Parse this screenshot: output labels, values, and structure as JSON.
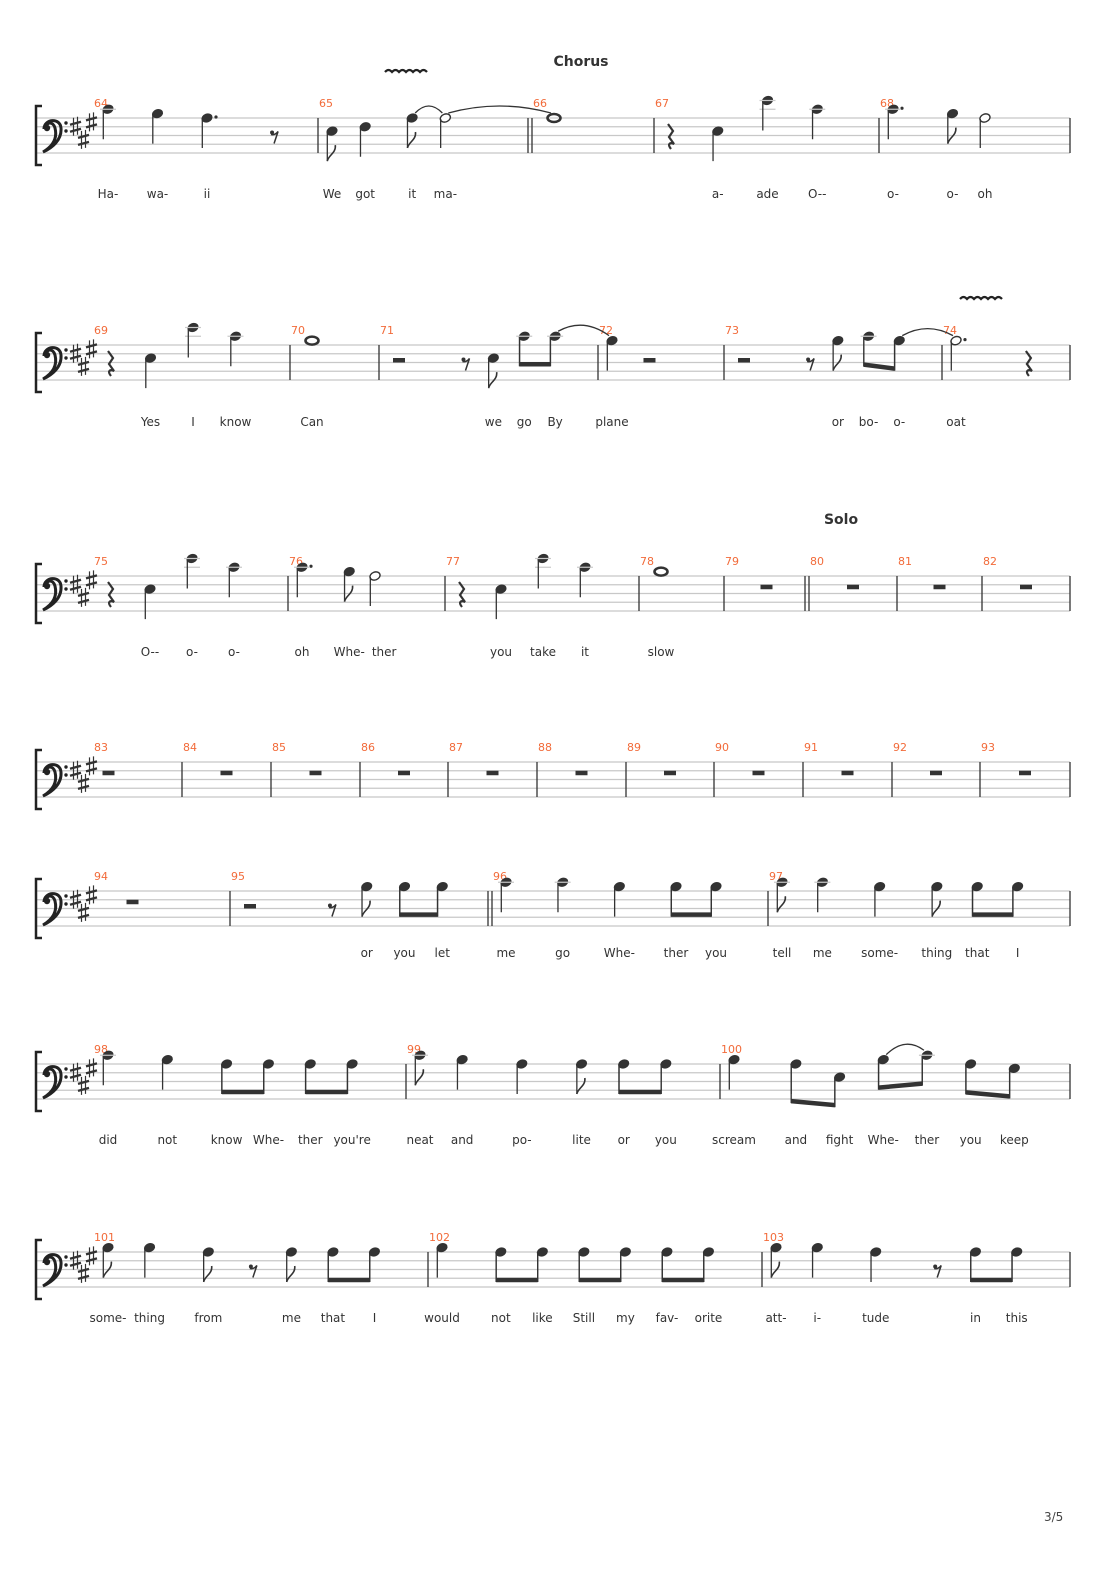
{
  "page_number": "3/5",
  "colors": {
    "measure_number": "#f26b3a",
    "ink": "#333333",
    "staff_line": "#c8c8c8",
    "lyric": "#333333"
  },
  "clef": "bass",
  "key_signature": {
    "sharps": [
      "F#",
      "C#",
      "G#"
    ]
  },
  "systems": [
    {
      "measures": [
        {
          "number": "64",
          "notes": [
            {
              "p": "C4",
              "d": 1,
              "l": "Ha-"
            },
            {
              "p": "B3",
              "d": 1,
              "l": "wa-"
            },
            {
              "p": "A3",
              "d": 1.5,
              "l": "ii"
            },
            {
              "r": true,
              "d": 0.5
            }
          ]
        },
        {
          "number": "65",
          "ornament": "wavy-line",
          "notes": [
            {
              "p": "E3",
              "d": 0.5,
              "l": "We"
            },
            {
              "p": "F3",
              "d": 1,
              "l": "got"
            },
            {
              "p": "A3",
              "d": 0.5,
              "l": "it",
              "t": true
            },
            {
              "p": "A3",
              "d": 2,
              "l": "ma-",
              "t": true
            }
          ]
        },
        {
          "number": "66",
          "double_bar_before": true,
          "section": "Chorus",
          "notes": [
            {
              "p": "A3",
              "d": 4
            }
          ]
        },
        {
          "number": "67",
          "notes": [
            {
              "r": true,
              "d": 1
            },
            {
              "p": "E3",
              "d": 1,
              "l": "a-"
            },
            {
              "p": "E4",
              "d": 1,
              "l": "ade"
            },
            {
              "p": "C4",
              "d": 1,
              "l": "O--"
            }
          ]
        },
        {
          "number": "68",
          "notes": [
            {
              "p": "C4",
              "d": 1.5,
              "l": "o-"
            },
            {
              "p": "B3",
              "d": 0.5,
              "l": "o-"
            },
            {
              "p": "A3",
              "d": 2,
              "l": "oh"
            }
          ]
        }
      ]
    },
    {
      "measures": [
        {
          "number": "69",
          "notes": [
            {
              "r": true,
              "d": 1
            },
            {
              "p": "E3",
              "d": 1,
              "l": "Yes"
            },
            {
              "p": "E4",
              "d": 1,
              "l": "I"
            },
            {
              "p": "C4",
              "d": 1,
              "l": "know"
            }
          ]
        },
        {
          "number": "70",
          "notes": [
            {
              "p": "B3",
              "d": 4,
              "l": "Can"
            }
          ]
        },
        {
          "number": "71",
          "notes": [
            {
              "r": true,
              "d": 2
            },
            {
              "r": true,
              "d": 0.5
            },
            {
              "p": "E3",
              "d": 0.5,
              "l": "we"
            },
            {
              "p": "C4",
              "d": 0.5,
              "l": "go"
            },
            {
              "p": "C4",
              "d": 0.5,
              "l": "By",
              "t": true
            }
          ]
        },
        {
          "number": "72",
          "notes": [
            {
              "p": "B3",
              "d": 1,
              "l": "plane"
            },
            {
              "r": true,
              "d": 3
            }
          ]
        },
        {
          "number": "73",
          "notes": [
            {
              "r": true,
              "d": 2
            },
            {
              "r": true,
              "d": 0.5
            },
            {
              "p": "B3",
              "d": 0.5,
              "l": "or"
            },
            {
              "p": "C4",
              "d": 0.5,
              "l": "bo-"
            },
            {
              "p": "B3",
              "d": 0.5,
              "l": "o-",
              "t": true
            }
          ]
        },
        {
          "number": "74",
          "ornament": "wavy-line",
          "notes": [
            {
              "p": "B3",
              "d": 3,
              "l": "oat"
            },
            {
              "r": true,
              "d": 1
            }
          ]
        }
      ]
    },
    {
      "measures": [
        {
          "number": "75",
          "notes": [
            {
              "r": true,
              "d": 1
            },
            {
              "p": "E3",
              "d": 1,
              "l": "O--"
            },
            {
              "p": "E4",
              "d": 1,
              "l": "o-"
            },
            {
              "p": "C4",
              "d": 1,
              "l": "o-"
            }
          ]
        },
        {
          "number": "76",
          "notes": [
            {
              "p": "C4",
              "d": 1.5,
              "l": "oh"
            },
            {
              "p": "B3",
              "d": 0.5,
              "l": "Whe-"
            },
            {
              "p": "A3",
              "d": 2,
              "l": "ther"
            }
          ]
        },
        {
          "number": "77",
          "notes": [
            {
              "r": true,
              "d": 1
            },
            {
              "p": "E3",
              "d": 1,
              "l": "you"
            },
            {
              "p": "E4",
              "d": 1,
              "l": "take"
            },
            {
              "p": "C4",
              "d": 1,
              "l": "it"
            }
          ]
        },
        {
          "number": "78",
          "notes": [
            {
              "p": "B3",
              "d": 4,
              "l": "slow"
            }
          ]
        },
        {
          "number": "79",
          "notes": [
            {
              "r": true,
              "d": 4
            }
          ]
        },
        {
          "number": "80",
          "double_bar_before": true,
          "section": "Solo",
          "notes": [
            {
              "r": true,
              "d": 4
            }
          ]
        },
        {
          "number": "81",
          "notes": [
            {
              "r": true,
              "d": 4
            }
          ]
        },
        {
          "number": "82",
          "notes": [
            {
              "r": true,
              "d": 4
            }
          ]
        }
      ]
    },
    {
      "measures": [
        {
          "number": "83",
          "notes": [
            {
              "r": true,
              "d": 4
            }
          ]
        },
        {
          "number": "84",
          "notes": [
            {
              "r": true,
              "d": 4
            }
          ]
        },
        {
          "number": "85",
          "notes": [
            {
              "r": true,
              "d": 4
            }
          ]
        },
        {
          "number": "86",
          "notes": [
            {
              "r": true,
              "d": 4
            }
          ]
        },
        {
          "number": "87",
          "notes": [
            {
              "r": true,
              "d": 4
            }
          ]
        },
        {
          "number": "88",
          "notes": [
            {
              "r": true,
              "d": 4
            }
          ]
        },
        {
          "number": "89",
          "notes": [
            {
              "r": true,
              "d": 4
            }
          ]
        },
        {
          "number": "90",
          "notes": [
            {
              "r": true,
              "d": 4
            }
          ]
        },
        {
          "number": "91",
          "notes": [
            {
              "r": true,
              "d": 4
            }
          ]
        },
        {
          "number": "92",
          "notes": [
            {
              "r": true,
              "d": 4
            }
          ]
        },
        {
          "number": "93",
          "notes": [
            {
              "r": true,
              "d": 4
            }
          ]
        }
      ]
    },
    {
      "measures": [
        {
          "number": "94",
          "notes": [
            {
              "r": true,
              "d": 4
            }
          ]
        },
        {
          "number": "95",
          "notes": [
            {
              "r": true,
              "d": 2
            },
            {
              "r": true,
              "d": 0.5
            },
            {
              "p": "B3",
              "d": 0.5,
              "l": "or"
            },
            {
              "p": "B3",
              "d": 0.5,
              "l": "you"
            },
            {
              "p": "B3",
              "d": 0.5,
              "l": "let"
            }
          ]
        },
        {
          "number": "96",
          "double_bar_before": true,
          "notes": [
            {
              "p": "C4",
              "d": 1,
              "l": "me"
            },
            {
              "p": "C4",
              "d": 1,
              "l": "go"
            },
            {
              "p": "B3",
              "d": 1,
              "l": "Whe-"
            },
            {
              "p": "B3",
              "d": 0.5,
              "l": "ther"
            },
            {
              "p": "B3",
              "d": 0.5,
              "l": "you"
            }
          ]
        },
        {
          "number": "97",
          "notes": [
            {
              "p": "C4",
              "d": 0.5,
              "l": "tell"
            },
            {
              "p": "C4",
              "d": 1,
              "l": "me"
            },
            {
              "p": "B3",
              "d": 1,
              "l": "some-"
            },
            {
              "p": "B3",
              "d": 0.5,
              "l": "thing"
            },
            {
              "p": "B3",
              "d": 0.5,
              "l": "that"
            },
            {
              "p": "B3",
              "d": 0.5,
              "l": "I"
            }
          ]
        }
      ]
    },
    {
      "measures": [
        {
          "number": "98",
          "notes": [
            {
              "p": "C4",
              "d": 1,
              "l": "did"
            },
            {
              "p": "B3",
              "d": 1,
              "l": "not"
            },
            {
              "p": "A3",
              "d": 0.5,
              "l": "know"
            },
            {
              "p": "A3",
              "d": 0.5,
              "l": "Whe-"
            },
            {
              "p": "A3",
              "d": 0.5,
              "l": "ther"
            },
            {
              "p": "A3",
              "d": 0.5,
              "l": "you're"
            }
          ]
        },
        {
          "number": "99",
          "notes": [
            {
              "p": "C4",
              "d": 0.5,
              "l": "neat"
            },
            {
              "p": "B3",
              "d": 1,
              "l": "and"
            },
            {
              "p": "A3",
              "d": 1,
              "l": "po-"
            },
            {
              "p": "A3",
              "d": 0.5,
              "l": "lite"
            },
            {
              "p": "A3",
              "d": 0.5,
              "l": "or"
            },
            {
              "p": "A3",
              "d": 0.5,
              "l": "you"
            }
          ]
        },
        {
          "number": "100",
          "notes": [
            {
              "p": "B3",
              "d": 1,
              "l": "scream"
            },
            {
              "p": "A3",
              "d": 0.5,
              "l": "and"
            },
            {
              "p": "E3",
              "d": 0.5,
              "l": "fight"
            },
            {
              "p": "B3",
              "d": 0.5,
              "l": "Whe-",
              "t": true
            },
            {
              "p": "C4",
              "d": 0.5,
              "l": "ther"
            },
            {
              "p": "A3",
              "d": 0.5,
              "l": "you"
            },
            {
              "p": "G3",
              "d": 0.5,
              "l": "keep"
            }
          ]
        }
      ]
    },
    {
      "measures": [
        {
          "number": "101",
          "notes": [
            {
              "p": "B3",
              "d": 0.5,
              "l": "some-"
            },
            {
              "p": "B3",
              "d": 1,
              "l": "thing"
            },
            {
              "p": "A3",
              "d": 0.5,
              "l": "from"
            },
            {
              "r": true,
              "d": 0.5
            },
            {
              "p": "A3",
              "d": 0.5,
              "l": "me"
            },
            {
              "p": "A3",
              "d": 0.5,
              "l": "that"
            },
            {
              "p": "A3",
              "d": 0.5,
              "l": "I"
            }
          ]
        },
        {
          "number": "102",
          "notes": [
            {
              "p": "B3",
              "d": 1,
              "l": "would"
            },
            {
              "p": "A3",
              "d": 0.5,
              "l": "not"
            },
            {
              "p": "A3",
              "d": 0.5,
              "l": "like"
            },
            {
              "p": "A3",
              "d": 0.5,
              "l": "Still"
            },
            {
              "p": "A3",
              "d": 0.5,
              "l": "my"
            },
            {
              "p": "A3",
              "d": 0.5,
              "l": "fav-"
            },
            {
              "p": "A3",
              "d": 0.5,
              "l": "orite"
            }
          ]
        },
        {
          "number": "103",
          "notes": [
            {
              "p": "B3",
              "d": 0.5,
              "l": "att-"
            },
            {
              "p": "B3",
              "d": 1,
              "l": "i-"
            },
            {
              "p": "A3",
              "d": 1,
              "l": "tude"
            },
            {
              "r": true,
              "d": 0.5
            },
            {
              "p": "A3",
              "d": 0.5,
              "l": "in"
            },
            {
              "p": "A3",
              "d": 0.5,
              "l": "this"
            }
          ]
        }
      ]
    }
  ]
}
